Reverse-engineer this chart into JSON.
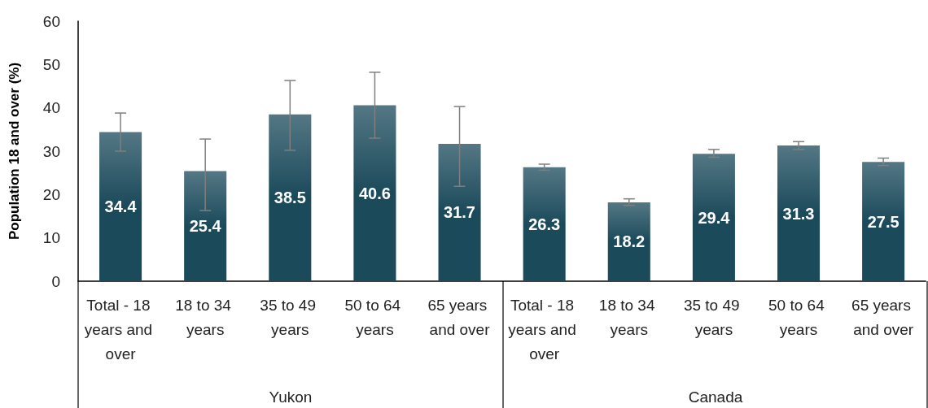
{
  "chart_data": {
    "type": "bar",
    "ylabel": "Population 18 and over (%)",
    "categories": [
      "Total - 18 years and over",
      "18 to 34 years",
      "35 to 49 years",
      "50 to 64 years",
      "65 years and over",
      "Total - 18 years and over",
      "18 to 34 years",
      "35 to 49 years",
      "50 to 64 years",
      "65 years and over"
    ],
    "values": [
      34.4,
      25.4,
      38.5,
      40.6,
      31.7,
      26.3,
      18.2,
      29.4,
      31.3,
      27.5
    ],
    "errors": [
      [
        30.0,
        38.8
      ],
      [
        16.3,
        32.8
      ],
      [
        30.2,
        46.3
      ],
      [
        33.0,
        48.2
      ],
      [
        21.9,
        40.3
      ],
      [
        25.6,
        27.0
      ],
      [
        17.5,
        19.0
      ],
      [
        28.6,
        30.4
      ],
      [
        30.4,
        32.2
      ],
      [
        26.7,
        28.4
      ]
    ],
    "color": "#1b4a5b",
    "ylim": [
      0,
      60
    ],
    "yticks": [
      0,
      10,
      20,
      30,
      40,
      50,
      60
    ],
    "data_labels": true,
    "grid": false,
    "annotations": [
      "Yukon",
      "Canada"
    ]
  }
}
